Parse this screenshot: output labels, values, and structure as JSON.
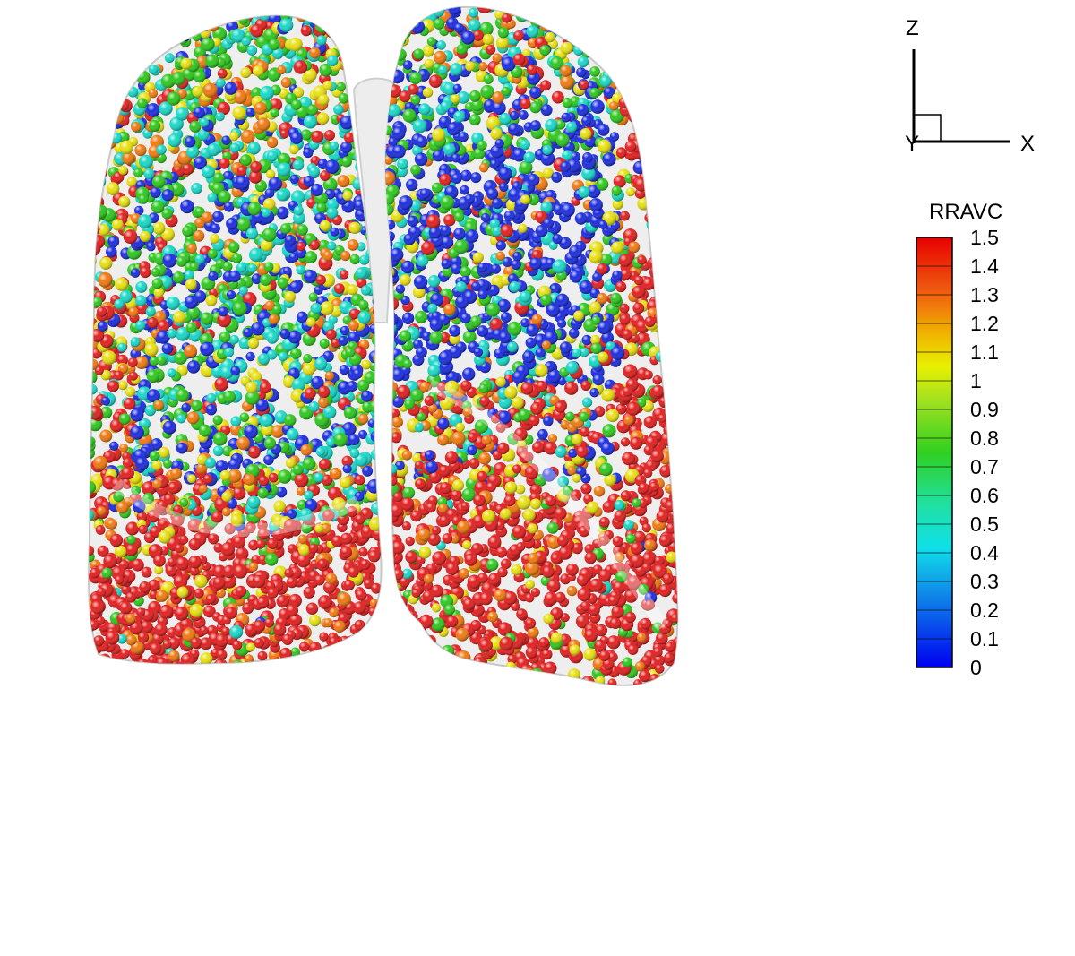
{
  "axes": {
    "vertical_label": "Z",
    "horizontal_label": "X",
    "depth_label": "Y"
  },
  "colorbar": {
    "title": "RRAVC",
    "min": 0,
    "max": 1.5,
    "ticks": [
      "1.5",
      "1.4",
      "1.3",
      "1.2",
      "1.1",
      "1",
      "0.9",
      "0.8",
      "0.7",
      "0.6",
      "0.5",
      "0.4",
      "0.3",
      "0.2",
      "0.1",
      "0"
    ]
  },
  "colors": {
    "red": "#e32020",
    "orange": "#f07a10",
    "yellow": "#e8e010",
    "green": "#2ec81e",
    "cyan": "#18d8c8",
    "blue": "#1c2de0"
  }
}
